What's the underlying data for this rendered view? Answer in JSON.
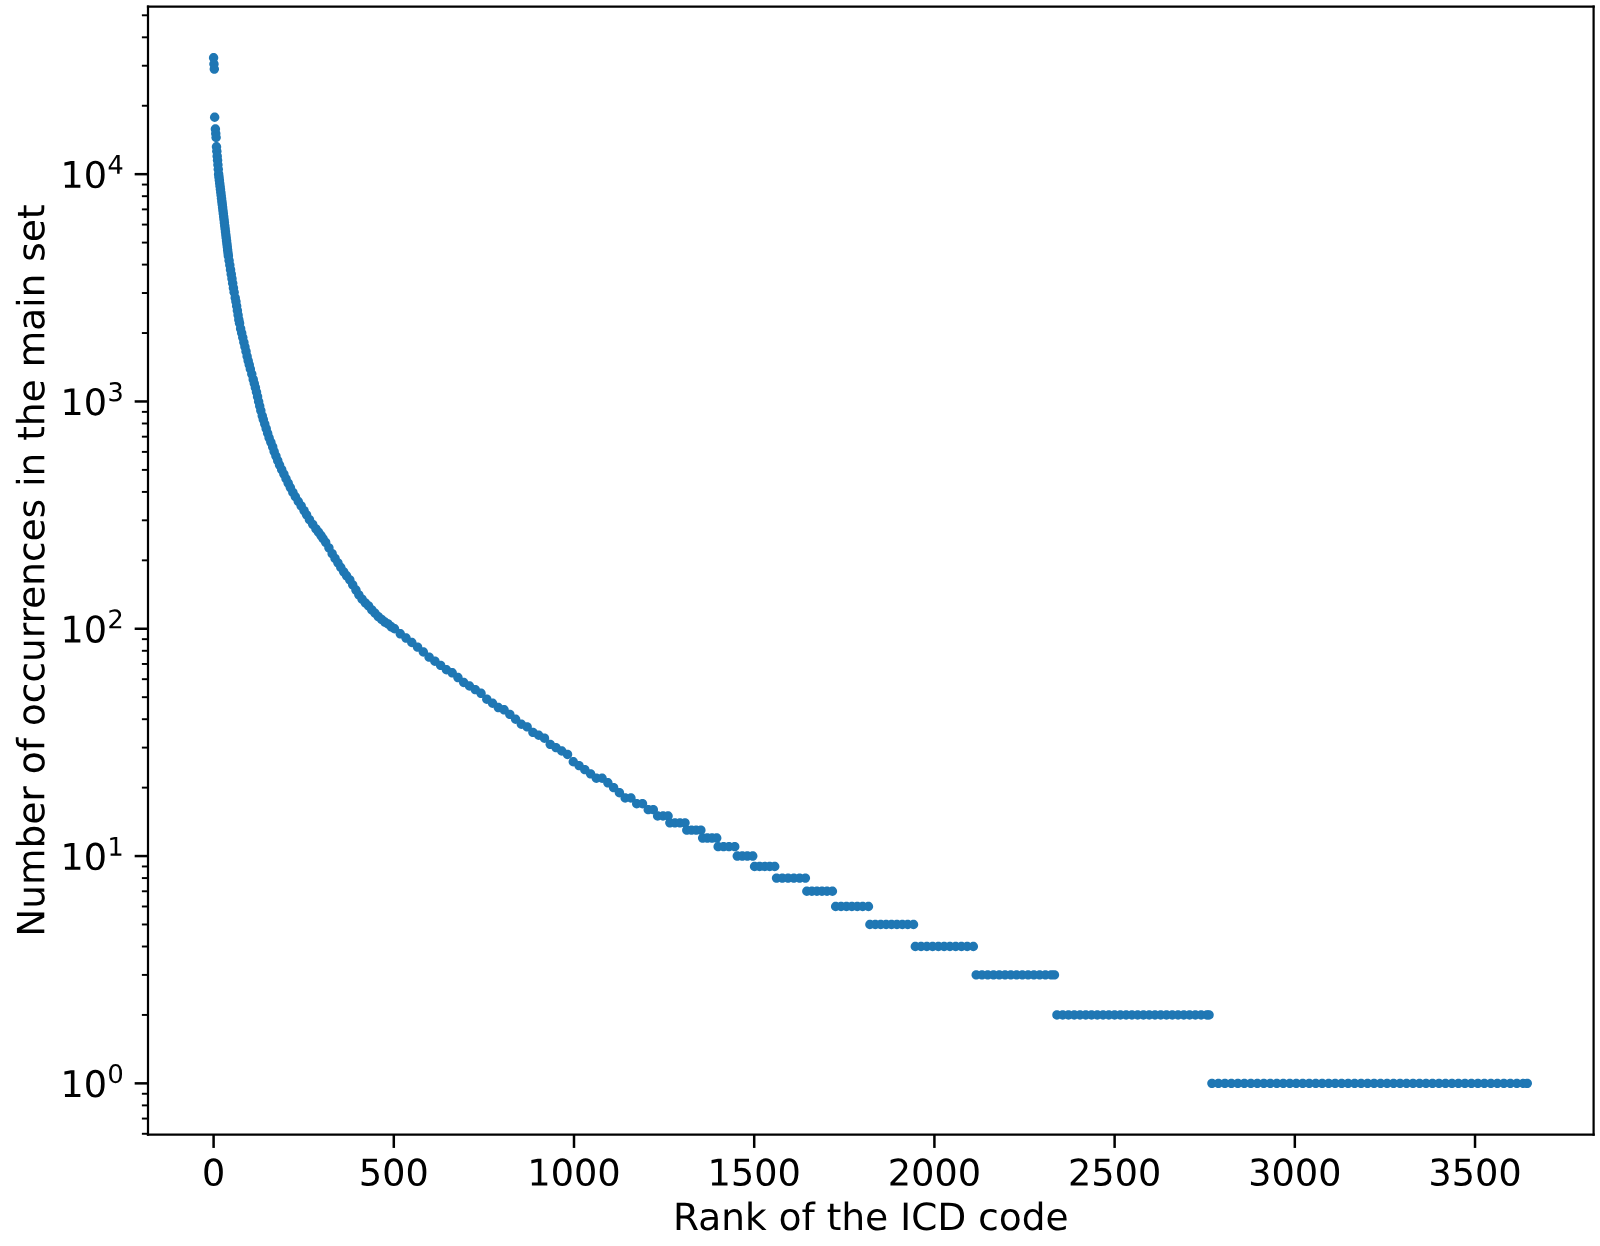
{
  "chart_data": {
    "type": "scatter",
    "xlabel": "Rank of the ICD code",
    "ylabel": "Number of occurrences in the main set",
    "log": "y",
    "marker": "circle",
    "xlim": [
      -182,
      3829
    ],
    "xticks": [
      0,
      500,
      1000,
      1500,
      2000,
      2500,
      3000,
      3500
    ],
    "ylim": [
      0.595,
      54600
    ],
    "yticks": [
      {
        "value": 0.6,
        "label": null
      },
      {
        "value": 0.7,
        "label": null
      },
      {
        "value": 0.8,
        "label": null
      },
      {
        "value": 0.9,
        "label": null
      },
      {
        "value": 1,
        "label": "10$^{0}$"
      },
      {
        "value": 2,
        "label": null
      },
      {
        "value": 3,
        "label": null
      },
      {
        "value": 4,
        "label": null
      },
      {
        "value": 5,
        "label": null
      },
      {
        "value": 6,
        "label": null
      },
      {
        "value": 7,
        "label": null
      },
      {
        "value": 8,
        "label": null
      },
      {
        "value": 9,
        "label": null
      },
      {
        "value": 10,
        "label": "10$^{1}$"
      },
      {
        "value": 20,
        "label": null
      },
      {
        "value": 30,
        "label": null
      },
      {
        "value": 40,
        "label": null
      },
      {
        "value": 50,
        "label": null
      },
      {
        "value": 60,
        "label": null
      },
      {
        "value": 70,
        "label": null
      },
      {
        "value": 80,
        "label": null
      },
      {
        "value": 90,
        "label": null
      },
      {
        "value": 100,
        "label": "10$^{2}$"
      },
      {
        "value": 200,
        "label": null
      },
      {
        "value": 300,
        "label": null
      },
      {
        "value": 400,
        "label": null
      },
      {
        "value": 500,
        "label": null
      },
      {
        "value": 600,
        "label": null
      },
      {
        "value": 700,
        "label": null
      },
      {
        "value": 800,
        "label": null
      },
      {
        "value": 900,
        "label": null
      },
      {
        "value": 1000,
        "label": "10$^{3}$"
      },
      {
        "value": 2000,
        "label": null
      },
      {
        "value": 3000,
        "label": null
      },
      {
        "value": 4000,
        "label": null
      },
      {
        "value": 5000,
        "label": null
      },
      {
        "value": 6000,
        "label": null
      },
      {
        "value": 7000,
        "label": null
      },
      {
        "value": 8000,
        "label": null
      },
      {
        "value": 9000,
        "label": null
      },
      {
        "value": 10000,
        "label": "10$^{4}$"
      },
      {
        "value": 20000,
        "label": null
      },
      {
        "value": 30000,
        "label": null
      },
      {
        "value": 40000,
        "label": null
      },
      {
        "value": 50000,
        "label": null
      }
    ],
    "x": [
      0,
      1,
      2,
      3,
      5,
      6,
      7,
      8,
      9,
      10,
      11,
      12,
      13,
      14,
      15,
      16,
      17,
      18,
      19,
      20,
      21,
      22,
      23,
      24,
      25,
      26,
      27,
      28,
      29,
      30,
      31,
      32,
      33,
      34,
      35,
      36,
      37,
      38,
      39,
      40,
      41,
      43,
      45,
      47,
      49,
      51,
      53,
      55,
      57,
      60,
      62,
      64,
      66,
      68,
      70,
      72,
      75,
      78,
      81,
      84,
      87,
      90,
      93,
      96,
      99,
      102,
      106,
      110,
      113,
      116,
      119,
      122,
      125,
      128,
      131,
      135,
      138,
      142,
      146,
      150,
      154,
      159,
      164,
      168,
      173,
      178,
      183,
      189,
      195,
      201,
      207,
      213,
      220,
      227,
      235,
      243,
      251,
      258,
      266,
      275,
      284,
      291,
      298,
      304,
      311,
      320,
      329,
      337,
      345,
      353,
      361,
      369,
      378,
      386,
      395,
      403,
      412,
      421,
      430,
      439,
      448,
      457,
      466,
      475,
      484,
      493,
      502,
      518,
      534,
      550,
      566,
      582,
      598,
      614,
      630,
      646,
      662,
      678,
      694,
      710,
      726,
      742,
      758,
      774,
      790,
      806,
      822,
      838,
      854,
      870,
      886,
      902,
      918,
      934,
      950,
      966,
      982,
      998,
      1014,
      1030,
      1046,
      1062,
      1078,
      1094,
      1110,
      1126,
      1142,
      1158,
      1174,
      1190,
      1206,
      1220,
      1232,
      1247,
      1261,
      1266,
      1280,
      1294,
      1308,
      1313,
      1326,
      1339,
      1352,
      1357,
      1370,
      1383,
      1396,
      1400,
      1415,
      1430,
      1446,
      1453,
      1467,
      1481,
      1496,
      1501,
      1515,
      1529,
      1543,
      1557,
      1562,
      1578,
      1594,
      1610,
      1626,
      1642,
      1646,
      1660,
      1674,
      1688,
      1702,
      1717,
      1726,
      1741,
      1756,
      1771,
      1786,
      1801,
      1817,
      1821,
      1836,
      1851,
      1866,
      1881,
      1896,
      1911,
      1926,
      1942,
      1947,
      1963,
      1979,
      1995,
      2011,
      2027,
      2043,
      2059,
      2075,
      2091,
      2108,
      2116,
      2132,
      2148,
      2164,
      2180,
      2196,
      2212,
      2228,
      2244,
      2260,
      2276,
      2292,
      2308,
      2324,
      2333,
      2340,
      2356,
      2372,
      2388,
      2404,
      2420,
      2436,
      2452,
      2468,
      2484,
      2500,
      2516,
      2532,
      2548,
      2564,
      2580,
      2596,
      2612,
      2628,
      2644,
      2660,
      2676,
      2692,
      2708,
      2724,
      2740,
      2756,
      2762,
      2770,
      2788,
      2806,
      2824,
      2842,
      2860,
      2878,
      2896,
      2914,
      2932,
      2950,
      2968,
      2986,
      3004,
      3022,
      3040,
      3058,
      3076,
      3094,
      3112,
      3130,
      3148,
      3166,
      3184,
      3202,
      3220,
      3238,
      3256,
      3274,
      3292,
      3310,
      3328,
      3346,
      3364,
      3382,
      3400,
      3418,
      3436,
      3454,
      3472,
      3490,
      3508,
      3526,
      3544,
      3562,
      3580,
      3598,
      3616,
      3634,
      3645
    ],
    "series": [
      {
        "color": "#1f77b4",
        "values": [
          32500,
          30500,
          29000,
          17800,
          15800,
          15100,
          14500,
          13200,
          12600,
          12000,
          11500,
          11000,
          10500,
          10000,
          9700,
          9400,
          9120,
          8840,
          8580,
          8320,
          8070,
          7830,
          7590,
          7360,
          7140,
          6920,
          6710,
          6510,
          6310,
          6120,
          5930,
          5750,
          5580,
          5410,
          5250,
          5090,
          4940,
          4790,
          4640,
          4500,
          4370,
          4170,
          3980,
          3800,
          3630,
          3470,
          3310,
          3160,
          3020,
          2860,
          2750,
          2630,
          2510,
          2400,
          2290,
          2210,
          2090,
          2000,
          1910,
          1820,
          1740,
          1660,
          1580,
          1510,
          1450,
          1390,
          1320,
          1250,
          1200,
          1150,
          1100,
          1050,
          1000,
          955,
          912,
          865,
          832,
          795,
          759,
          725,
          692,
          661,
          631,
          602,
          575,
          549,
          525,
          501,
          479,
          457,
          437,
          418,
          398,
          381,
          363,
          347,
          331,
          317,
          302,
          288,
          275,
          266,
          257,
          249,
          240,
          227,
          214,
          204,
          195,
          186,
          178,
          171,
          164,
          156,
          148,
          141,
          135,
          130,
          126,
          121,
          117,
          113,
          110,
          107,
          105,
          102,
          100,
          95,
          91,
          87,
          83,
          79,
          75,
          72,
          69,
          66,
          64,
          61,
          58,
          56,
          54,
          52,
          49,
          47,
          45,
          44,
          42,
          40,
          38,
          37,
          35,
          34,
          33,
          31,
          30,
          29,
          28,
          26,
          25,
          24,
          23,
          22,
          22,
          21,
          20,
          19,
          18,
          18,
          17,
          17,
          16,
          16,
          15,
          15,
          15,
          14,
          14,
          14,
          14,
          13,
          13,
          13,
          13,
          12,
          12,
          12,
          12,
          11,
          11,
          11,
          11,
          10,
          10,
          10,
          10,
          9,
          9,
          9,
          9,
          9,
          8,
          8,
          8,
          8,
          8,
          8,
          7,
          7,
          7,
          7,
          7,
          7,
          6,
          6,
          6,
          6,
          6,
          6,
          6,
          5,
          5,
          5,
          5,
          5,
          5,
          5,
          5,
          5,
          4,
          4,
          4,
          4,
          4,
          4,
          4,
          4,
          4,
          4,
          4,
          3,
          3,
          3,
          3,
          3,
          3,
          3,
          3,
          3,
          3,
          3,
          3,
          3,
          3,
          3,
          2,
          2,
          2,
          2,
          2,
          2,
          2,
          2,
          2,
          2,
          2,
          2,
          2,
          2,
          2,
          2,
          2,
          2,
          2,
          2,
          2,
          2,
          2,
          2,
          2,
          2,
          2,
          2,
          1,
          1,
          1,
          1,
          1,
          1,
          1,
          1,
          1,
          1,
          1,
          1,
          1,
          1,
          1,
          1,
          1,
          1,
          1,
          1,
          1,
          1,
          1,
          1,
          1,
          1,
          1,
          1,
          1,
          1,
          1,
          1,
          1,
          1,
          1,
          1,
          1,
          1,
          1,
          1,
          1,
          1,
          1,
          1,
          1,
          1,
          1,
          1,
          1,
          1
        ]
      }
    ]
  }
}
